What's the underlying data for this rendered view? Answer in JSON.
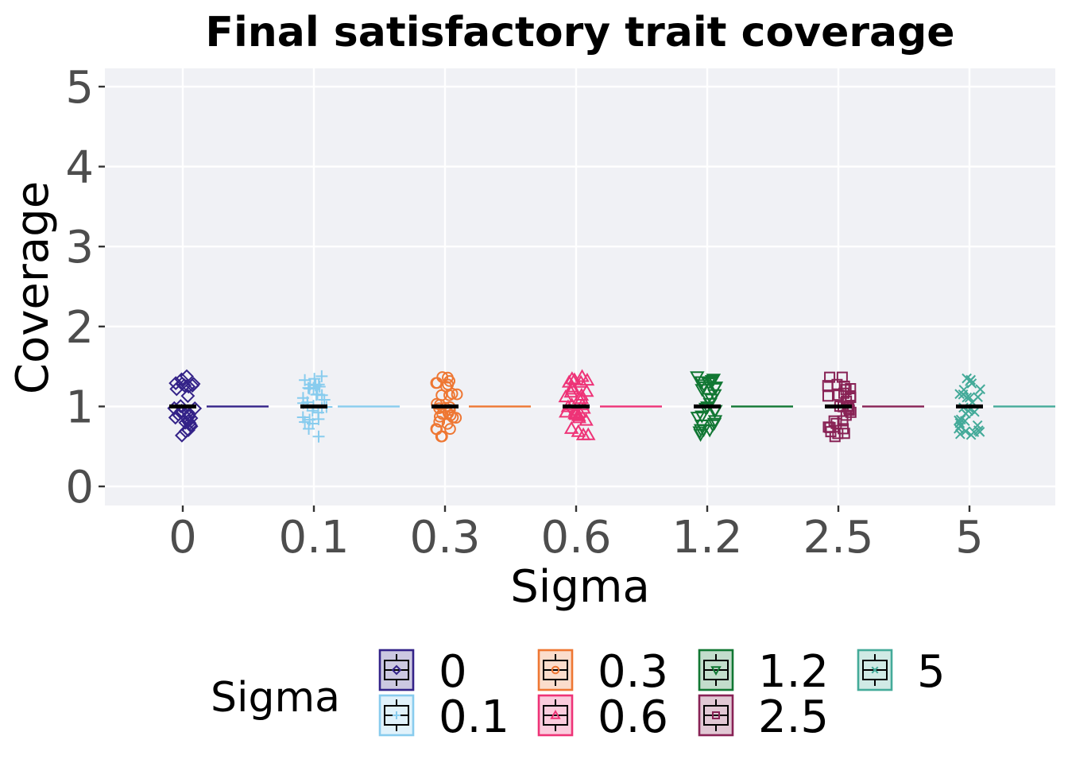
{
  "chart_data": {
    "type": "box-jitter",
    "title": "Final satisfactory trait coverage",
    "xlabel": "Sigma",
    "ylabel": "Coverage",
    "categories": [
      "0",
      "0.1",
      "0.3",
      "0.6",
      "1.2",
      "2.5",
      "5"
    ],
    "yticks": [
      "0",
      "1",
      "2",
      "3",
      "4",
      "5"
    ],
    "ylim": [
      -0.22,
      5.25
    ],
    "grid": true,
    "series": [
      {
        "name": "0",
        "color": "#332288",
        "shape": "diamond",
        "median": 1,
        "q1": 1,
        "q3": 1,
        "points": 30
      },
      {
        "name": "0.1",
        "color": "#88CCEE",
        "shape": "plus",
        "median": 1,
        "q1": 1,
        "q3": 1,
        "points": 30
      },
      {
        "name": "0.3",
        "color": "#EE7733",
        "shape": "circle",
        "median": 1,
        "q1": 1,
        "q3": 1,
        "points": 30
      },
      {
        "name": "0.6",
        "color": "#EE3377",
        "shape": "triangle-up",
        "median": 1,
        "q1": 1,
        "q3": 1,
        "points": 30
      },
      {
        "name": "1.2",
        "color": "#117733",
        "shape": "triangle-down",
        "median": 1,
        "q1": 1,
        "q3": 1,
        "points": 30
      },
      {
        "name": "2.5",
        "color": "#882255",
        "shape": "square",
        "median": 1,
        "q1": 1,
        "q3": 1,
        "points": 30
      },
      {
        "name": "5",
        "color": "#44AA99",
        "shape": "cross",
        "median": 1,
        "q1": 1,
        "q3": 1,
        "points": 30
      }
    ],
    "jitter_range": [
      0.62,
      1.38
    ],
    "legend": {
      "title": "Sigma",
      "position": "bottom"
    }
  },
  "colors": {
    "panel_background": "#F0F1F5",
    "grid": "#FFFFFF",
    "median_bar": "#000000"
  }
}
